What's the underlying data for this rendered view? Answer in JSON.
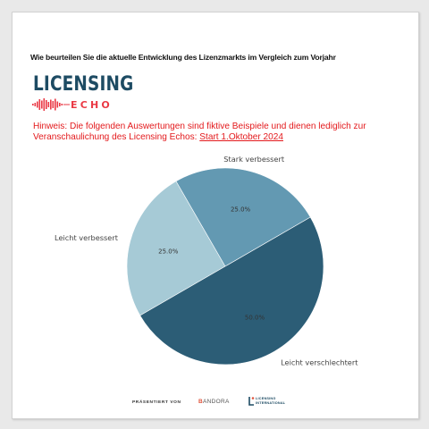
{
  "question": "Wie beurteilen Sie die aktuelle Entwicklung des Lizenzmarkts im Vergleich zum Vorjahr",
  "logo": {
    "word": "LICENSING",
    "sub": "ECHO",
    "colors": {
      "word": "#1d4b63",
      "sub": "#ea3a45"
    }
  },
  "notice": {
    "text": "Hinweis: Die folgenden Auswertungen sind fiktive Beispiele und dienen lediglich zur Veranschaulichung des Licensing Echos: ",
    "date_link": "Start 1.Oktober 2024",
    "color": "#e3191c"
  },
  "chart_data": {
    "type": "pie",
    "title": "",
    "start_angle_deg": 210,
    "direction": "counterclockwise",
    "slices": [
      {
        "label": "Leicht verbessert",
        "value": 25.0,
        "label_text": "25.0%",
        "color": "#a6cad6"
      },
      {
        "label": "Stark verbessert",
        "value": 25.0,
        "label_text": "25.0%",
        "color": "#6399b2"
      },
      {
        "label": "Leicht verschlechtert",
        "value": 50.0,
        "label_text": "50.0%",
        "color": "#2c5d76"
      }
    ]
  },
  "footer": {
    "presented_by": "PRÄSENTIERT VON",
    "bandora_b": "B",
    "bandora_rest": "ANDORA",
    "licensing_international_line1": "LICENSING",
    "licensing_international_line2": "INTERNATIONAL"
  }
}
